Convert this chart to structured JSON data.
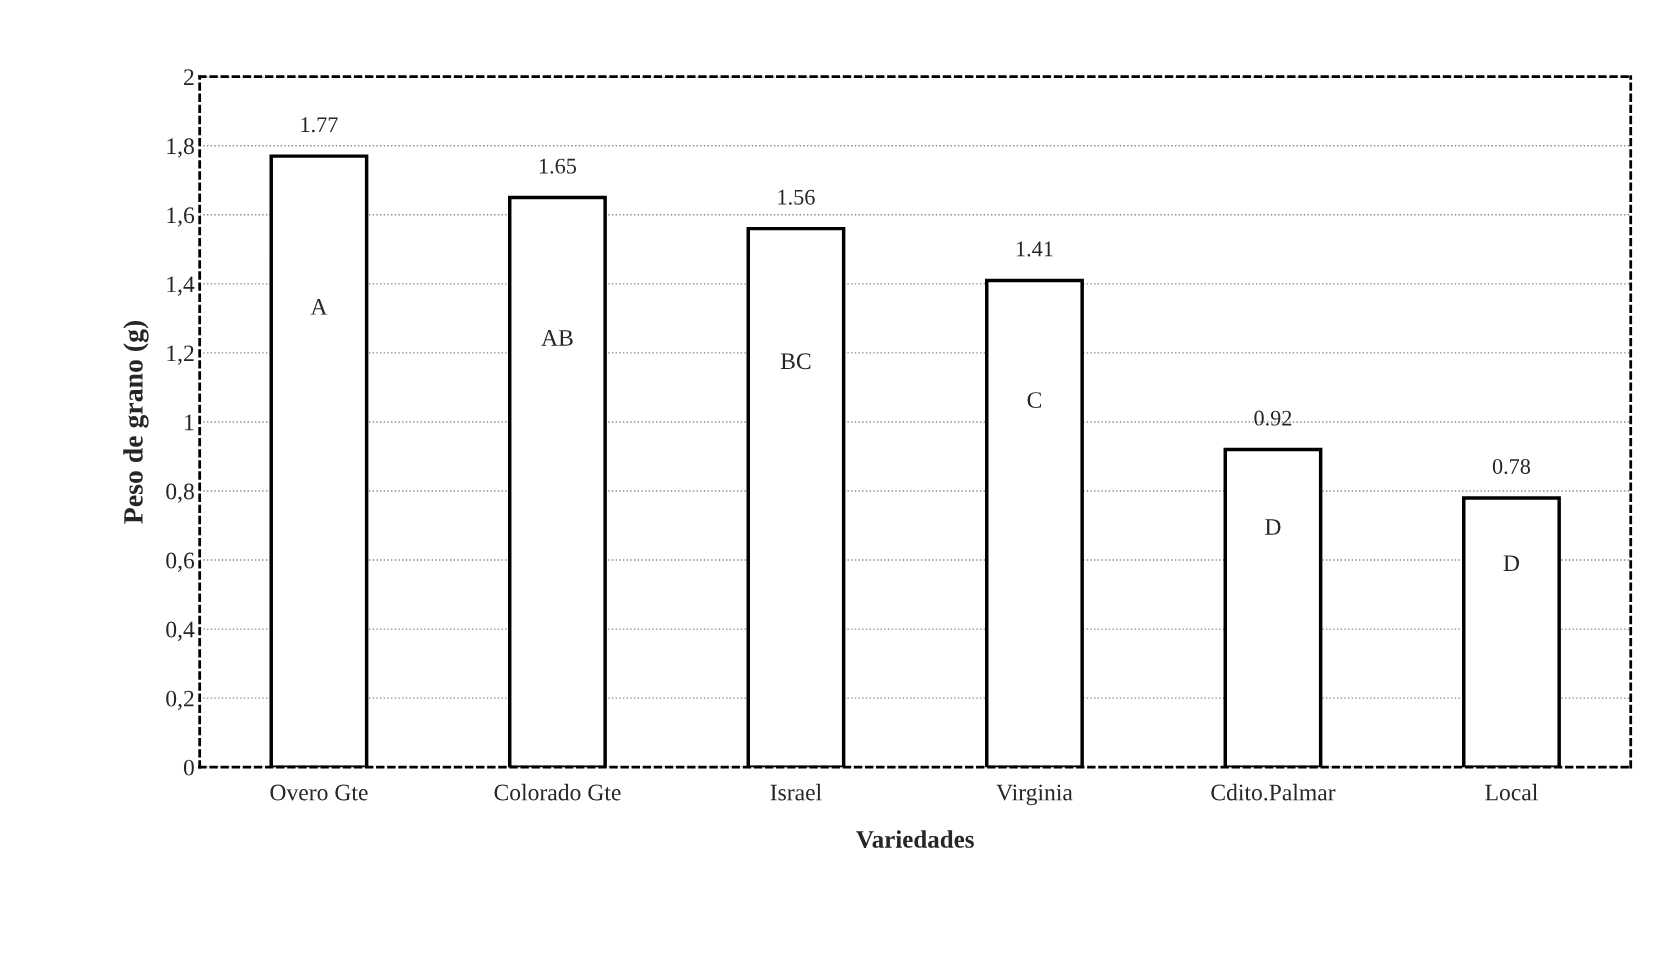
{
  "chart_data": {
    "type": "bar",
    "xlabel": "Variedades",
    "ylabel": "Peso de grano (g)",
    "categories": [
      "Overo Gte",
      "Colorado Gte",
      "Israel",
      "Virginia",
      "Cdito.Palmar",
      "Local"
    ],
    "values": [
      1.77,
      1.65,
      1.56,
      1.41,
      0.92,
      0.78
    ],
    "color": "#ffffff",
    "data_labels": true,
    "ylim": [
      0,
      2
    ],
    "yticks": [
      0,
      {
        "value": 0.2,
        "label": "0,2"
      },
      {
        "value": 0.4,
        "label": "0,4"
      },
      {
        "value": 0.6,
        "label": "0,6"
      },
      {
        "value": 0.8,
        "label": "0,8"
      },
      1,
      {
        "value": 1.2,
        "label": "1,2"
      },
      {
        "value": 1.4,
        "label": "1,4"
      },
      {
        "value": 1.6,
        "label": "1,6"
      },
      {
        "value": 1.8,
        "label": "1,8"
      },
      2
    ],
    "grid": "y",
    "annotations": [
      "A",
      "AB",
      "BC",
      "C",
      "D",
      "D"
    ]
  }
}
